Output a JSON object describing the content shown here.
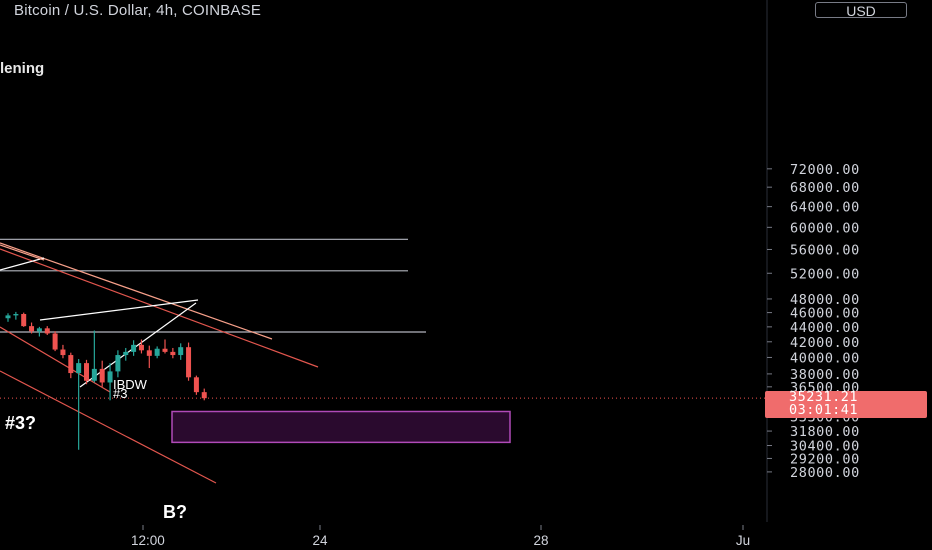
{
  "header": {
    "symbol_title": "Bitcoin / U.S. Dollar, 4h, COINBASE",
    "study_title": "lening",
    "currency_button": "USD"
  },
  "price_axis": {
    "ticks": [
      "72000.00",
      "68000.00",
      "64000.00",
      "60000.00",
      "56000.00",
      "52000.00",
      "48000.00",
      "46000.00",
      "44000.00",
      "42000.00",
      "40000.00",
      "38000.00",
      "36500.00",
      "33300.00",
      "31800.00",
      "30400.00",
      "29200.00",
      "28000.00"
    ]
  },
  "time_axis": {
    "ticks": [
      "12:00",
      "24",
      "28",
      "Ju"
    ]
  },
  "current_price": {
    "value": "35231.21",
    "countdown": "03:01:41"
  },
  "annotations": {
    "pattern_label_line1": "IBDW",
    "pattern_label_line2": "#3",
    "wave_label": "#3?",
    "target_label": "B?"
  },
  "colors": {
    "background": "#000000",
    "up_candle": "#26a69a",
    "down_candle": "#ef5350",
    "trendline": "#f7a08a",
    "trendline_red": "#e2564e",
    "horizontal_level": "#b2b5be",
    "target_box_fill": "#2a0a2e",
    "target_box_border": "#b04ab8",
    "price_label": "#f06c6c"
  },
  "chart_data": {
    "type": "candlestick",
    "interval": "4h",
    "y_scale": "log",
    "ylim": [
      27000,
      72000
    ],
    "current_price": 35231.21,
    "horizontal_levels": [
      57800,
      52400,
      43300
    ],
    "target_zone": {
      "low": 30700,
      "high": 33800
    },
    "candles": [
      {
        "o": 45200,
        "h": 45900,
        "l": 44700,
        "c": 45600
      },
      {
        "o": 45600,
        "h": 46100,
        "l": 45000,
        "c": 45800
      },
      {
        "o": 45800,
        "h": 46000,
        "l": 44000,
        "c": 44100
      },
      {
        "o": 44100,
        "h": 44600,
        "l": 43100,
        "c": 43400
      },
      {
        "o": 43400,
        "h": 44000,
        "l": 42700,
        "c": 43800
      },
      {
        "o": 43800,
        "h": 44100,
        "l": 42900,
        "c": 43100
      },
      {
        "o": 43100,
        "h": 43400,
        "l": 40800,
        "c": 41000
      },
      {
        "o": 41000,
        "h": 41600,
        "l": 39900,
        "c": 40300
      },
      {
        "o": 40300,
        "h": 40600,
        "l": 37500,
        "c": 38100
      },
      {
        "o": 38100,
        "h": 39800,
        "l": 30000,
        "c": 39300
      },
      {
        "o": 39300,
        "h": 39700,
        "l": 36800,
        "c": 37200
      },
      {
        "o": 37200,
        "h": 43500,
        "l": 37000,
        "c": 38600
      },
      {
        "o": 38600,
        "h": 39600,
        "l": 36500,
        "c": 37000
      },
      {
        "o": 37000,
        "h": 39300,
        "l": 35000,
        "c": 38300
      },
      {
        "o": 38300,
        "h": 40900,
        "l": 37600,
        "c": 40300
      },
      {
        "o": 40300,
        "h": 41200,
        "l": 39600,
        "c": 40700
      },
      {
        "o": 40700,
        "h": 42200,
        "l": 40200,
        "c": 41600
      },
      {
        "o": 41600,
        "h": 42300,
        "l": 40500,
        "c": 40900
      },
      {
        "o": 40900,
        "h": 41500,
        "l": 38700,
        "c": 40200
      },
      {
        "o": 40200,
        "h": 41400,
        "l": 39900,
        "c": 41100
      },
      {
        "o": 41100,
        "h": 42300,
        "l": 40500,
        "c": 40700
      },
      {
        "o": 40700,
        "h": 41200,
        "l": 39900,
        "c": 40300
      },
      {
        "o": 40300,
        "h": 41800,
        "l": 39700,
        "c": 41300
      },
      {
        "o": 41300,
        "h": 41900,
        "l": 37200,
        "c": 37600
      },
      {
        "o": 37600,
        "h": 37800,
        "l": 35600,
        "c": 35900
      },
      {
        "o": 35900,
        "h": 36300,
        "l": 35000,
        "c": 35231
      }
    ]
  }
}
